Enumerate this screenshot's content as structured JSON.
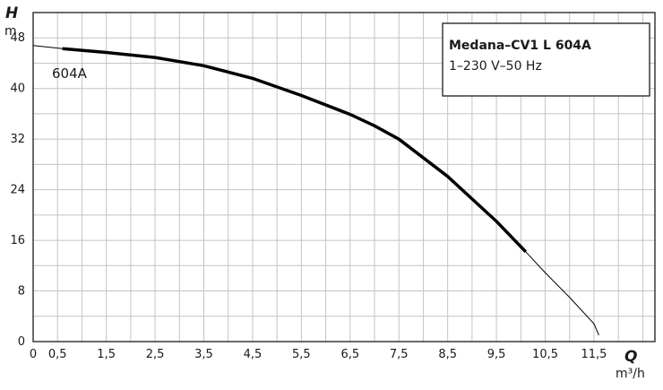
{
  "chart_data": {
    "type": "line",
    "title": "",
    "y_axis": {
      "letter": "H",
      "unit": "m",
      "ticks": [
        0,
        8,
        16,
        24,
        32,
        40,
        48
      ],
      "range": [
        0,
        52
      ]
    },
    "x_axis": {
      "letter": "Q",
      "unit": "m³/h",
      "ticks": [
        "0",
        "0,5",
        "1,5",
        "2,5",
        "3,5",
        "4,5",
        "5,5",
        "6,5",
        "7,5",
        "8,5",
        "9,5",
        "10,5",
        "11,5"
      ],
      "range": [
        0,
        12.75
      ]
    },
    "grid": true,
    "legend": {
      "placement": "top-right",
      "title": "Medana–CV1 L 604A",
      "subtitle": "1–230 V–50 Hz"
    },
    "series": [
      {
        "name": "604A",
        "operating_range": [
          0.6,
          10.1
        ],
        "x": [
          0,
          0.6,
          1.5,
          2.5,
          3.5,
          4.5,
          5.5,
          6.5,
          7.0,
          7.5,
          8.5,
          9.5,
          10.1,
          10.5,
          11.0,
          11.5,
          11.6
        ],
        "y": [
          46.8,
          46.3,
          45.7,
          44.9,
          43.6,
          41.6,
          38.9,
          35.9,
          34.1,
          32.0,
          26.1,
          19.0,
          14.2,
          10.9,
          7.0,
          2.8,
          1.0
        ]
      }
    ]
  },
  "colors": {
    "grid": "#c4c4c4",
    "frame": "#2a2a2a",
    "curve": "#000000"
  }
}
